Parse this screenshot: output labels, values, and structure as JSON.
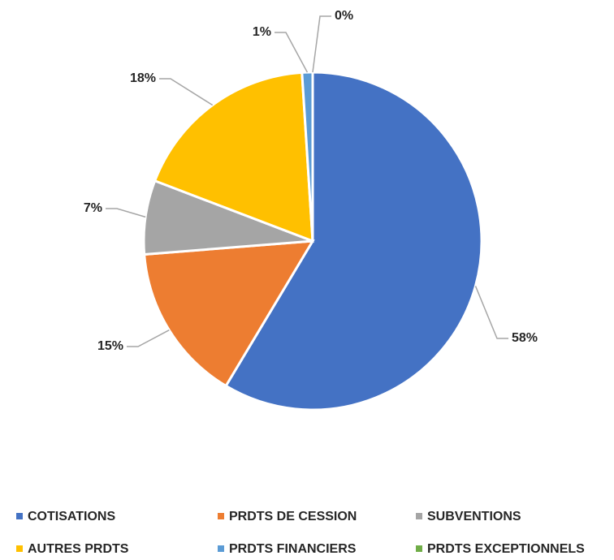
{
  "chart_data": {
    "type": "pie",
    "categories": [
      "COTISATIONS",
      "PRDTS DE CESSION",
      "SUBVENTIONS",
      "AUTRES PRDTS",
      "PRDTS FINANCIERS",
      "PRDTS EXCEPTIONNELS"
    ],
    "values": [
      58,
      15,
      7,
      18,
      1,
      0
    ],
    "value_labels": [
      "58%",
      "15%",
      "7%",
      "18%",
      "1%",
      "0%"
    ],
    "colors": [
      "#4472c4",
      "#ed7d31",
      "#a5a5a5",
      "#ffc000",
      "#5b9bd5",
      "#70ad47"
    ],
    "legend": "bottom"
  }
}
